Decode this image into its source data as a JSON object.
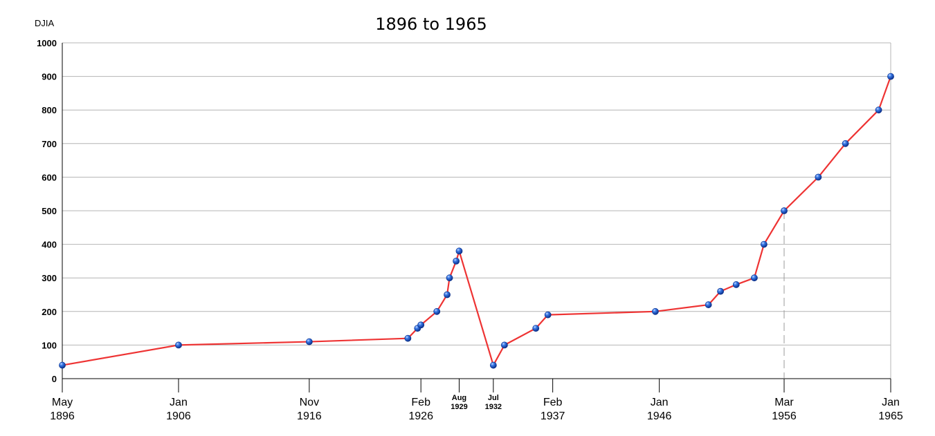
{
  "chart_data": {
    "type": "line",
    "title": "1896  to 1965",
    "ylabel": "DJIA",
    "xlabel": "",
    "ylim": [
      0,
      1000
    ],
    "xlim": [
      1896.37,
      1965.0
    ],
    "yticks": [
      0,
      100,
      200,
      300,
      400,
      500,
      600,
      700,
      800,
      900,
      1000
    ],
    "grid": true,
    "line_color": "#ee3333",
    "marker_color": "#1f5fd0",
    "reference_line_x": 1956.17,
    "xticks": [
      {
        "x": 1896.37,
        "month": "May",
        "year": "1896",
        "size": "normal"
      },
      {
        "x": 1906.0,
        "month": "Jan",
        "year": "1906",
        "size": "normal"
      },
      {
        "x": 1916.83,
        "month": "Nov",
        "year": "1916",
        "size": "normal"
      },
      {
        "x": 1926.08,
        "month": "Feb",
        "year": "1926",
        "size": "normal"
      },
      {
        "x": 1929.25,
        "month": "Aug",
        "year": "1929",
        "size": "small"
      },
      {
        "x": 1932.08,
        "month": "Jul",
        "year": "1932",
        "size": "small"
      },
      {
        "x": 1937.0,
        "month": "Feb",
        "year": "1937",
        "size": "normal"
      },
      {
        "x": 1945.83,
        "month": "Jan",
        "year": "1946",
        "size": "normal"
      },
      {
        "x": 1956.17,
        "month": "Mar",
        "year": "1956",
        "size": "normal"
      },
      {
        "x": 1965.0,
        "month": "Jan",
        "year": "1965",
        "size": "normal"
      }
    ],
    "series": [
      {
        "x": [
          1896.37,
          1906.0,
          1916.83,
          1925.0,
          1925.8,
          1926.08,
          1927.4,
          1928.25,
          1928.45,
          1929.0,
          1929.25,
          1932.08,
          1933.0,
          1935.6,
          1936.6,
          1945.5,
          1949.9,
          1950.9,
          1952.2,
          1953.7,
          1954.5,
          1956.17,
          1959.0,
          1961.25,
          1964.0,
          1965.0
        ],
        "y": [
          40,
          100,
          110,
          120,
          150,
          160,
          200,
          250,
          300,
          350,
          380,
          40,
          100,
          150,
          190,
          200,
          220,
          260,
          280,
          300,
          400,
          500,
          600,
          700,
          800,
          900
        ]
      }
    ]
  }
}
